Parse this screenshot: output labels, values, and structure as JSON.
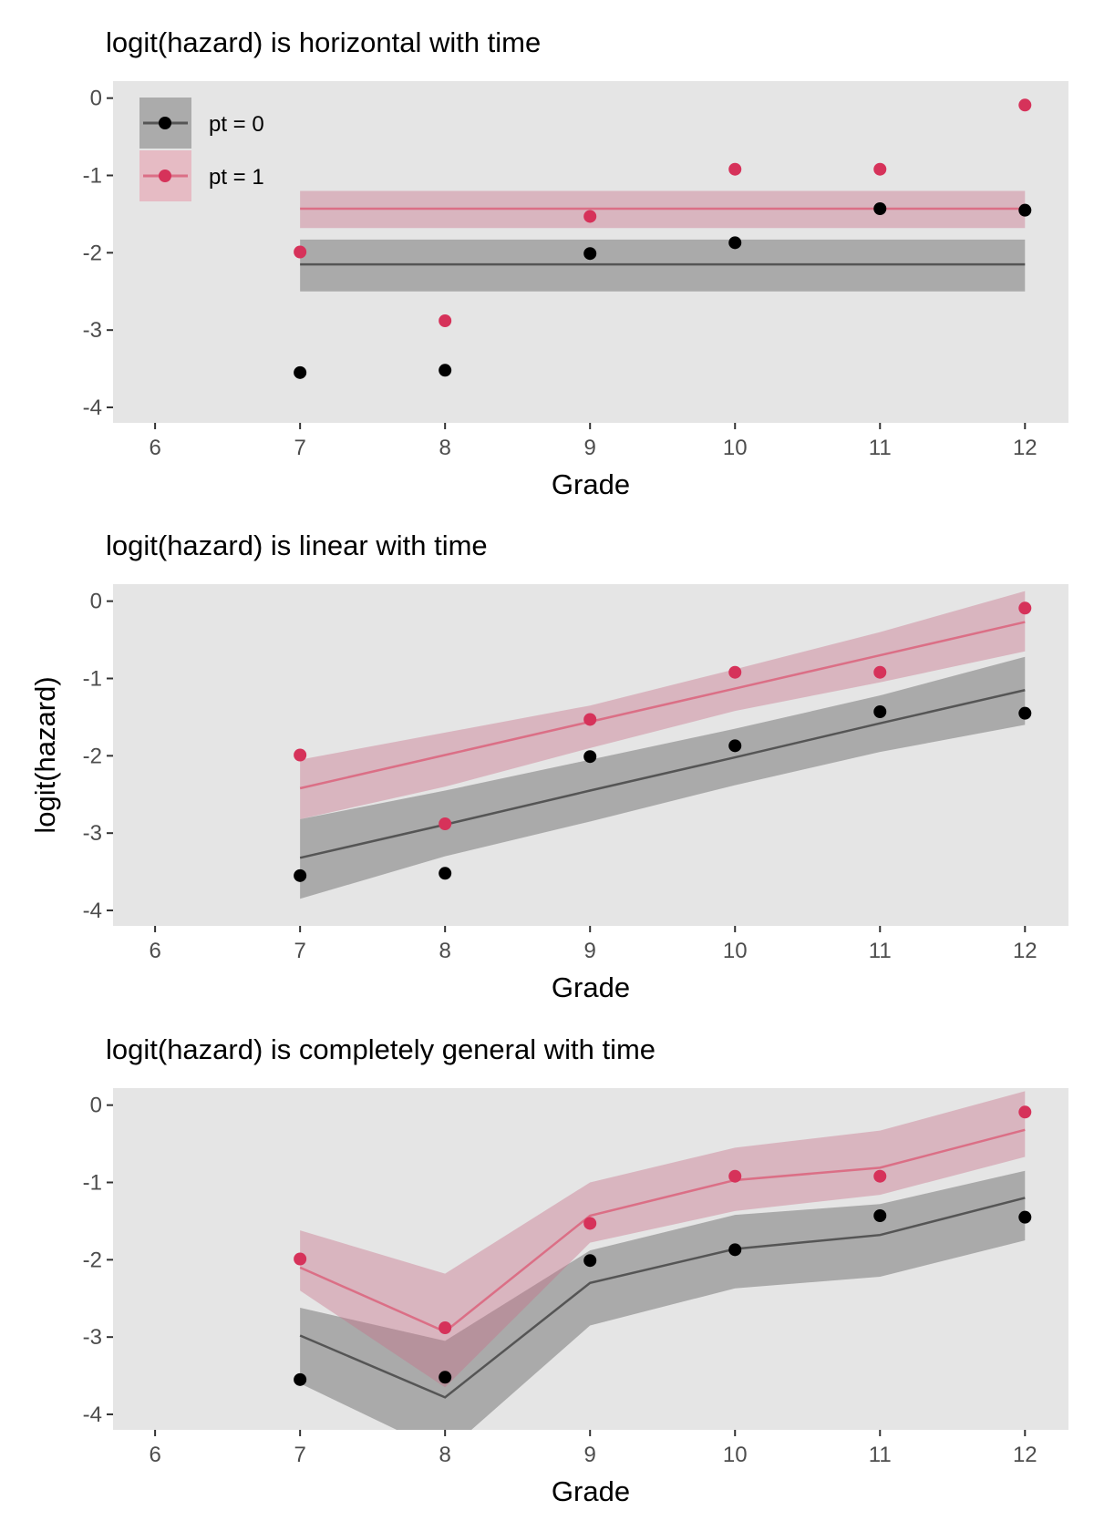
{
  "chart_data": [
    {
      "type": "line",
      "title": "logit(hazard) is horizontal with time",
      "xlabel": "Grade",
      "ylabel": "",
      "xlim": [
        5.71,
        12.3
      ],
      "ylim": [
        -4.2,
        0.22
      ],
      "xticks": [
        6,
        7,
        8,
        9,
        10,
        11,
        12
      ],
      "yticks": [
        0,
        -1,
        -2,
        -3,
        -4
      ],
      "grid": false,
      "legend": {
        "placement": "top-left",
        "entries": [
          "pt = 0",
          "pt = 1"
        ]
      },
      "series": [
        {
          "name": "pt = 0",
          "color": "#000000",
          "line_color": "#555555",
          "ribbon_color": "#ababab",
          "x": [
            7,
            8,
            9,
            10,
            11,
            12
          ],
          "points": [
            -3.55,
            -3.52,
            -2.01,
            -1.87,
            -1.43,
            -1.45
          ],
          "fit": [
            -2.15,
            -2.15,
            -2.15,
            -2.15,
            -2.15,
            -2.15
          ],
          "lower": [
            -2.5,
            -2.5,
            -2.5,
            -2.5,
            -2.5,
            -2.5
          ],
          "upper": [
            -1.83,
            -1.83,
            -1.83,
            -1.83,
            -1.83,
            -1.83
          ]
        },
        {
          "name": "pt = 1",
          "color": "#d6325a",
          "line_color": "#db6f86",
          "ribbon_color": "#e0b5bf",
          "x": [
            7,
            8,
            9,
            10,
            11,
            12
          ],
          "points": [
            -1.99,
            -2.88,
            -1.53,
            -0.92,
            -0.92,
            -0.09
          ],
          "fit": [
            -1.43,
            -1.43,
            -1.43,
            -1.43,
            -1.43,
            -1.43
          ],
          "lower": [
            -1.68,
            -1.68,
            -1.68,
            -1.68,
            -1.68,
            -1.68
          ],
          "upper": [
            -1.2,
            -1.2,
            -1.2,
            -1.2,
            -1.2,
            -1.2
          ]
        }
      ]
    },
    {
      "type": "line",
      "title": "logit(hazard) is linear with time",
      "xlabel": "Grade",
      "ylabel": "logit(hazard)",
      "xlim": [
        5.71,
        12.3
      ],
      "ylim": [
        -4.2,
        0.22
      ],
      "xticks": [
        6,
        7,
        8,
        9,
        10,
        11,
        12
      ],
      "yticks": [
        0,
        -1,
        -2,
        -3,
        -4
      ],
      "grid": false,
      "series": [
        {
          "color": "#000000",
          "line_color": "#555555",
          "ribbon_color": "#ababab",
          "x": [
            7,
            8,
            9,
            10,
            11,
            12
          ],
          "points": [
            -3.55,
            -3.52,
            -2.01,
            -1.87,
            -1.43,
            -1.45
          ],
          "fit": [
            -3.32,
            -2.89,
            -2.45,
            -2.02,
            -1.58,
            -1.15
          ],
          "lower": [
            -3.85,
            -3.3,
            -2.85,
            -2.38,
            -1.95,
            -1.6
          ],
          "upper": [
            -2.82,
            -2.45,
            -2.05,
            -1.65,
            -1.22,
            -0.72
          ]
        },
        {
          "color": "#d6325a",
          "line_color": "#db6f86",
          "ribbon_color": "#e0b5bf",
          "x": [
            7,
            8,
            9,
            10,
            11,
            12
          ],
          "points": [
            -1.99,
            -2.88,
            -1.53,
            -0.92,
            -0.92,
            -0.09
          ],
          "fit": [
            -2.42,
            -1.99,
            -1.56,
            -1.13,
            -0.7,
            -0.27
          ],
          "lower": [
            -2.82,
            -2.4,
            -1.9,
            -1.42,
            -1.05,
            -0.65
          ],
          "upper": [
            -2.05,
            -1.7,
            -1.35,
            -0.88,
            -0.4,
            0.13
          ]
        }
      ]
    },
    {
      "type": "line",
      "title": "logit(hazard) is completely general with time",
      "xlabel": "Grade",
      "ylabel": "",
      "xlim": [
        5.71,
        12.3
      ],
      "ylim": [
        -4.2,
        0.22
      ],
      "xticks": [
        6,
        7,
        8,
        9,
        10,
        11,
        12
      ],
      "yticks": [
        0,
        -1,
        -2,
        -3,
        -4
      ],
      "grid": false,
      "series": [
        {
          "color": "#000000",
          "line_color": "#555555",
          "ribbon_color": "#ababab",
          "x": [
            7,
            8,
            9,
            10,
            11,
            12
          ],
          "points": [
            -3.55,
            -3.52,
            -2.01,
            -1.87,
            -1.43,
            -1.45
          ],
          "fit": [
            -2.98,
            -3.78,
            -2.3,
            -1.86,
            -1.68,
            -1.2
          ],
          "lower": [
            -3.6,
            -4.5,
            -2.85,
            -2.37,
            -2.22,
            -1.75
          ],
          "upper": [
            -2.62,
            -3.05,
            -1.88,
            -1.42,
            -1.28,
            -0.85
          ]
        },
        {
          "color": "#d6325a",
          "line_color": "#db6f86",
          "ribbon_color": "#e0b5bf",
          "x": [
            7,
            8,
            9,
            10,
            11,
            12
          ],
          "points": [
            -1.99,
            -2.88,
            -1.53,
            -0.92,
            -0.92,
            -0.09
          ],
          "fit": [
            -2.1,
            -2.93,
            -1.43,
            -0.97,
            -0.81,
            -0.32
          ],
          "lower": [
            -2.4,
            -3.65,
            -1.78,
            -1.37,
            -1.16,
            -0.67
          ],
          "upper": [
            -1.62,
            -2.18,
            -1.0,
            -0.55,
            -0.33,
            0.18
          ]
        }
      ]
    }
  ]
}
